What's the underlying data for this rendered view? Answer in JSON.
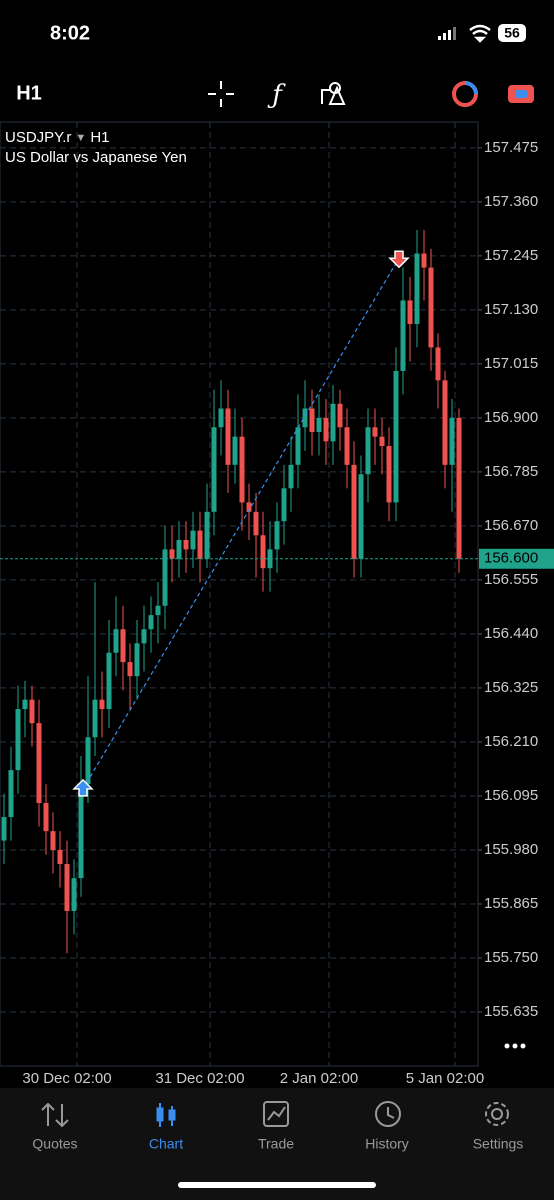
{
  "status_bar": {
    "time": "8:02",
    "battery": "56"
  },
  "toolbar": {
    "timeframe": "H1"
  },
  "chart_data": {
    "type": "candlestick",
    "symbol": "USDJPY.r",
    "timeframe": "H1",
    "title": "US Dollar vs Japanese Yen",
    "bull_color": "#1fa38a",
    "bear_color": "#ef5350",
    "categories": [
      null,
      null,
      null,
      null,
      null,
      null,
      null,
      null,
      null,
      "30 Dec 02:00",
      null,
      null,
      null,
      null,
      null,
      null,
      null,
      null,
      null,
      null,
      null,
      null,
      null,
      null,
      null,
      null,
      null,
      null,
      "31 Dec 02:00",
      null,
      null,
      null,
      null,
      null,
      null,
      null,
      null,
      null,
      null,
      null,
      null,
      null,
      null,
      null,
      null,
      "2 Jan 02:00",
      null,
      null,
      null,
      null,
      null,
      null,
      null,
      null,
      null,
      null,
      null,
      null,
      null,
      null,
      null,
      null,
      null,
      "5 Jan 02:00",
      null,
      null
    ],
    "open": [
      156.0,
      156.05,
      156.15,
      156.28,
      156.3,
      156.25,
      156.08,
      156.02,
      155.98,
      155.95,
      155.85,
      155.92,
      156.12,
      156.22,
      156.3,
      156.28,
      156.4,
      156.45,
      156.38,
      156.35,
      156.42,
      156.45,
      156.48,
      156.5,
      156.62,
      156.6,
      156.64,
      156.62,
      156.66,
      156.6,
      156.7,
      156.88,
      156.92,
      156.8,
      156.86,
      156.72,
      156.7,
      156.65,
      156.58,
      156.62,
      156.68,
      156.75,
      156.8,
      156.88,
      156.92,
      156.87,
      156.9,
      156.85,
      156.93,
      156.88,
      156.8,
      156.6,
      156.78,
      156.88,
      156.86,
      156.84,
      156.72,
      157.0,
      157.15,
      157.1,
      157.25,
      157.22,
      157.05,
      156.98,
      156.8,
      156.9
    ],
    "high": [
      156.1,
      156.2,
      156.33,
      156.34,
      156.33,
      156.3,
      156.12,
      156.06,
      156.02,
      156.0,
      155.96,
      156.18,
      156.35,
      156.55,
      156.36,
      156.47,
      156.52,
      156.5,
      156.42,
      156.47,
      156.5,
      156.52,
      156.55,
      156.67,
      156.67,
      156.68,
      156.68,
      156.7,
      156.7,
      156.76,
      156.96,
      156.98,
      156.96,
      156.92,
      156.9,
      156.76,
      156.74,
      156.7,
      156.68,
      156.72,
      156.8,
      156.86,
      156.95,
      156.98,
      156.96,
      156.95,
      156.94,
      156.97,
      156.96,
      156.92,
      156.85,
      156.82,
      156.92,
      156.92,
      156.9,
      156.88,
      157.05,
      157.22,
      157.2,
      157.3,
      157.3,
      157.26,
      157.08,
      157.0,
      156.94,
      156.92
    ],
    "low": [
      155.95,
      156.0,
      156.1,
      156.22,
      156.2,
      156.03,
      155.97,
      155.93,
      155.9,
      155.76,
      155.8,
      155.88,
      156.08,
      156.18,
      156.22,
      156.24,
      156.35,
      156.32,
      156.28,
      156.3,
      156.36,
      156.4,
      156.42,
      156.45,
      156.55,
      156.56,
      156.57,
      156.58,
      156.55,
      156.58,
      156.65,
      156.82,
      156.74,
      156.76,
      156.66,
      156.64,
      156.56,
      156.53,
      156.53,
      156.57,
      156.63,
      156.7,
      156.75,
      156.83,
      156.82,
      156.82,
      156.8,
      156.8,
      156.83,
      156.75,
      156.56,
      156.56,
      156.72,
      156.8,
      156.78,
      156.68,
      156.68,
      156.95,
      157.02,
      157.05,
      157.15,
      157.0,
      156.92,
      156.75,
      156.7,
      156.57
    ],
    "close": [
      156.05,
      156.15,
      156.28,
      156.3,
      156.25,
      156.08,
      156.02,
      155.98,
      155.95,
      155.85,
      155.92,
      156.12,
      156.22,
      156.3,
      156.28,
      156.4,
      156.45,
      156.38,
      156.35,
      156.42,
      156.45,
      156.48,
      156.5,
      156.62,
      156.6,
      156.64,
      156.62,
      156.66,
      156.6,
      156.7,
      156.88,
      156.92,
      156.8,
      156.86,
      156.72,
      156.7,
      156.65,
      156.58,
      156.62,
      156.68,
      156.75,
      156.8,
      156.88,
      156.92,
      156.87,
      156.9,
      156.85,
      156.93,
      156.88,
      156.8,
      156.6,
      156.78,
      156.88,
      156.86,
      156.84,
      156.72,
      157.0,
      157.15,
      157.1,
      157.25,
      157.22,
      157.05,
      156.98,
      156.8,
      156.9,
      156.6
    ],
    "current_price": {
      "value": 156.6,
      "label": "156.600"
    },
    "trade": {
      "entry": 156.11,
      "exit": 157.24
    },
    "ylim": [
      155.52,
      157.53
    ],
    "yticks": [
      157.475,
      {
        "value": 157.36,
        "label": "157.360"
      },
      157.245,
      {
        "value": 157.13,
        "label": "157.130"
      },
      157.015,
      {
        "value": 156.9,
        "label": "156.900"
      },
      156.785,
      {
        "value": 156.67,
        "label": "156.670"
      },
      156.555,
      {
        "value": 156.44,
        "label": "156.440"
      },
      156.325,
      {
        "value": 156.21,
        "label": "156.210"
      },
      156.095,
      {
        "value": 155.98,
        "label": "155.980"
      },
      155.865,
      {
        "value": 155.75,
        "label": "155.750"
      },
      155.635
    ],
    "grid": true
  },
  "nav": {
    "items": [
      "Quotes",
      "Chart",
      "Trade",
      "History",
      "Settings"
    ],
    "active": 1
  }
}
